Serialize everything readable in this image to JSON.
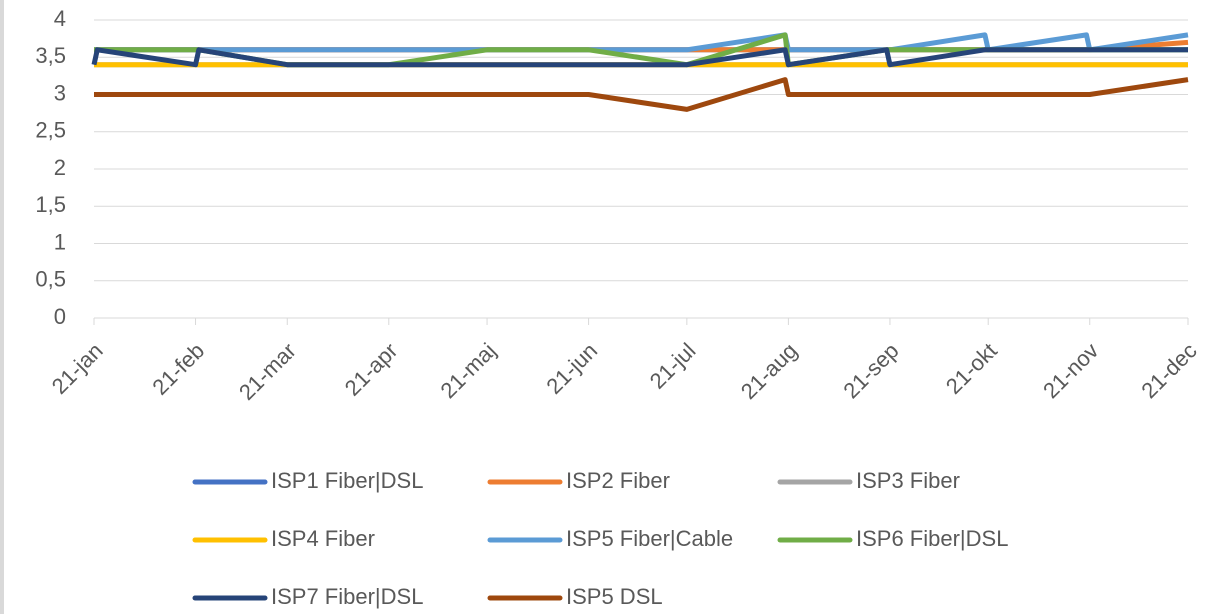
{
  "chart_data": {
    "type": "line",
    "x": [
      0,
      1,
      31,
      32,
      59,
      90,
      120,
      151,
      181,
      211,
      212,
      242,
      243,
      272,
      273,
      303,
      304,
      334
    ],
    "xlim": [
      0,
      334
    ],
    "xticks": [
      {
        "value": 0,
        "label": "21-jan"
      },
      {
        "value": 31,
        "label": "21-feb"
      },
      {
        "value": 59,
        "label": "21-mar"
      },
      {
        "value": 90,
        "label": "21-apr"
      },
      {
        "value": 120,
        "label": "21-maj"
      },
      {
        "value": 151,
        "label": "21-jun"
      },
      {
        "value": 181,
        "label": "21-jul"
      },
      {
        "value": 212,
        "label": "21-aug"
      },
      {
        "value": 243,
        "label": "21-sep"
      },
      {
        "value": 273,
        "label": "21-okt"
      },
      {
        "value": 304,
        "label": "21-nov"
      },
      {
        "value": 334,
        "label": "21-dec"
      }
    ],
    "ylim": [
      0,
      4
    ],
    "yticks": [
      0,
      {
        "value": 0.5,
        "label": "0,5"
      },
      1,
      {
        "value": 1.5,
        "label": "1,5"
      },
      2,
      {
        "value": 2.5,
        "label": "2,5"
      },
      3,
      {
        "value": 3.5,
        "label": "3,5"
      },
      4
    ],
    "grid": true,
    "legend": "bottom",
    "series": [
      {
        "name": "ISP1 Fiber|DSL",
        "color": "#4472c4",
        "values": [
          3.6,
          3.6,
          3.6,
          3.6,
          3.6,
          3.6,
          3.6,
          3.6,
          3.6,
          3.6,
          3.6,
          3.6,
          3.6,
          3.6,
          3.6,
          3.6,
          3.6,
          3.6
        ]
      },
      {
        "name": "ISP2 Fiber",
        "color": "#ed7d31",
        "values": [
          3.6,
          3.6,
          3.6,
          3.6,
          3.6,
          3.6,
          3.6,
          3.6,
          3.6,
          3.6,
          3.6,
          3.6,
          3.6,
          3.6,
          3.6,
          3.6,
          3.6,
          3.7
        ]
      },
      {
        "name": "ISP3 Fiber",
        "color": "#a5a5a5",
        "values": [
          3.4,
          3.4,
          3.4,
          3.4,
          3.4,
          3.4,
          3.4,
          3.4,
          3.4,
          3.4,
          3.4,
          3.4,
          3.4,
          3.4,
          3.4,
          3.4,
          3.4,
          3.4
        ]
      },
      {
        "name": "ISP4 Fiber",
        "color": "#ffc000",
        "values": [
          3.4,
          3.4,
          3.4,
          3.4,
          3.4,
          3.4,
          3.4,
          3.4,
          3.4,
          3.4,
          3.4,
          3.4,
          3.4,
          3.4,
          3.4,
          3.4,
          3.4,
          3.4
        ]
      },
      {
        "name": "ISP5 Fiber|Cable",
        "color": "#5b9bd5",
        "values": [
          3.6,
          3.6,
          3.6,
          3.6,
          3.6,
          3.6,
          3.6,
          3.6,
          3.6,
          3.8,
          3.6,
          3.6,
          3.6,
          3.8,
          3.6,
          3.8,
          3.6,
          3.8
        ]
      },
      {
        "name": "ISP6 Fiber|DSL",
        "color": "#70ad47",
        "values": [
          3.6,
          3.6,
          3.6,
          3.6,
          3.4,
          3.4,
          3.6,
          3.6,
          3.4,
          3.8,
          3.4,
          3.6,
          3.6,
          3.6,
          3.6,
          3.6,
          3.6,
          3.6
        ]
      },
      {
        "name": "ISP7 Fiber|DSL",
        "color": "#264478",
        "values": [
          3.4,
          3.6,
          3.4,
          3.6,
          3.4,
          3.4,
          3.4,
          3.4,
          3.4,
          3.6,
          3.4,
          3.6,
          3.4,
          3.6,
          3.6,
          3.6,
          3.6,
          3.6
        ]
      },
      {
        "name": "ISP5 DSL",
        "color": "#9e480e",
        "values": [
          3,
          3,
          3,
          3,
          3,
          3,
          3,
          3,
          2.8,
          3.2,
          3,
          3,
          3,
          3,
          3,
          3,
          3,
          3.2
        ]
      }
    ]
  }
}
